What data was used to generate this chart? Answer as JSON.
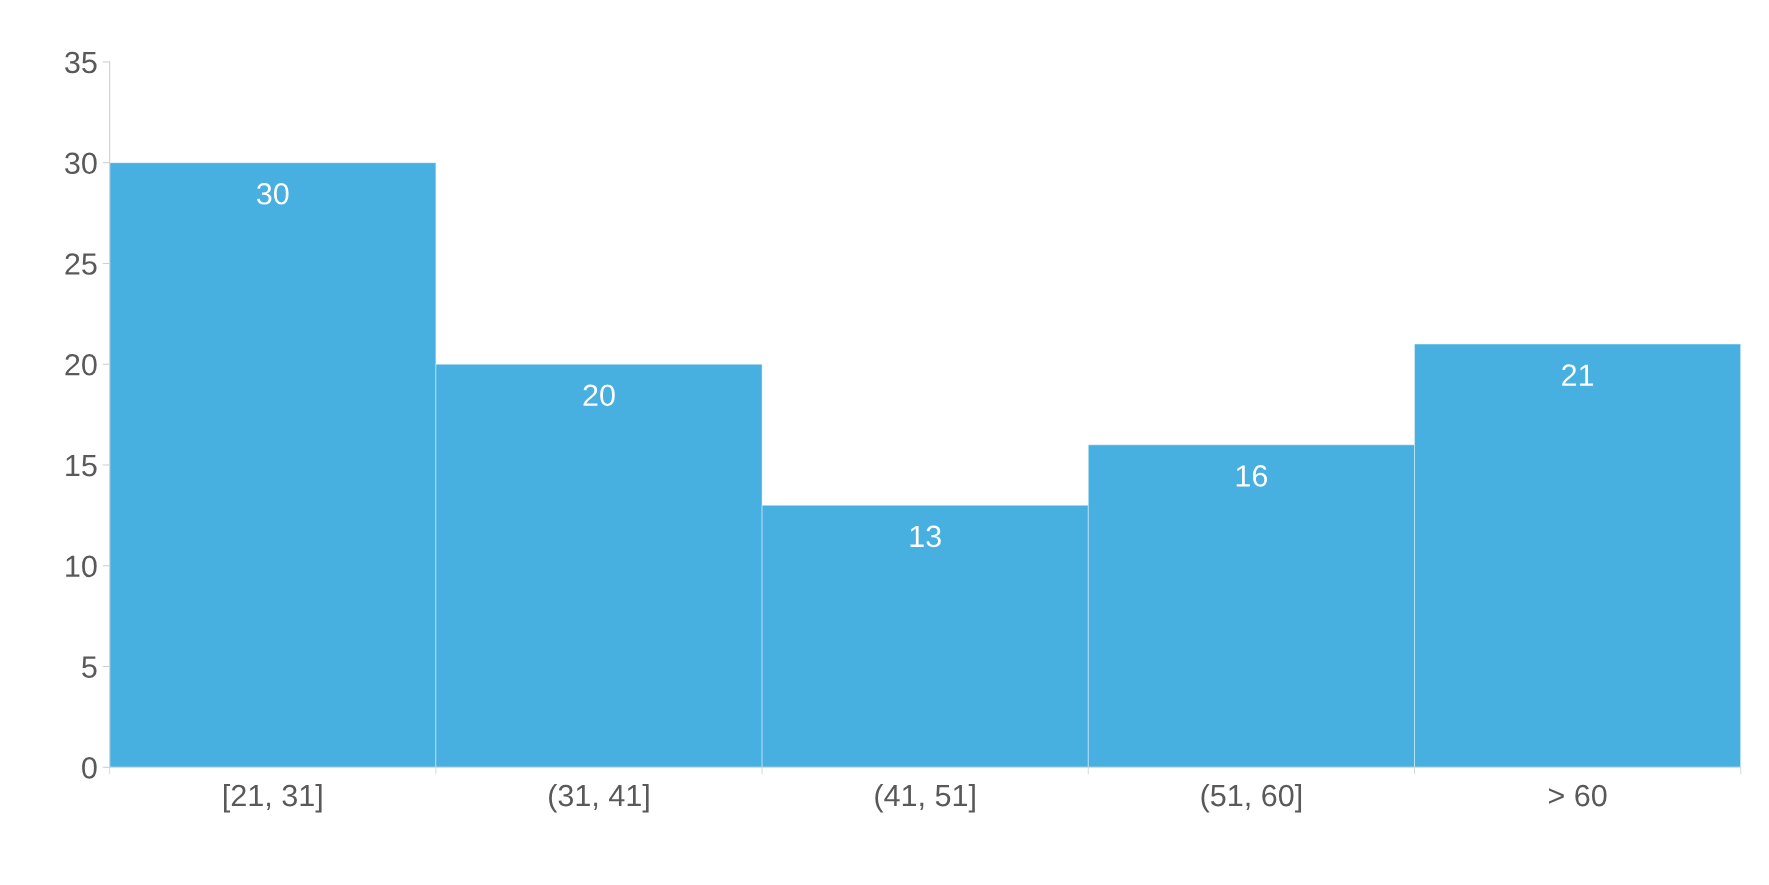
{
  "chart_data": {
    "type": "bar",
    "categories": [
      "[21, 31]",
      "(31, 41]",
      "(41, 51]",
      "(51, 60]",
      "> 60"
    ],
    "values": [
      30,
      20,
      13,
      16,
      21
    ],
    "color": "#48b0e0",
    "ylim": [
      0,
      35
    ],
    "yticks": [
      0,
      5,
      10,
      15,
      20,
      25,
      30,
      35
    ],
    "data_labels": true,
    "grid": false
  }
}
